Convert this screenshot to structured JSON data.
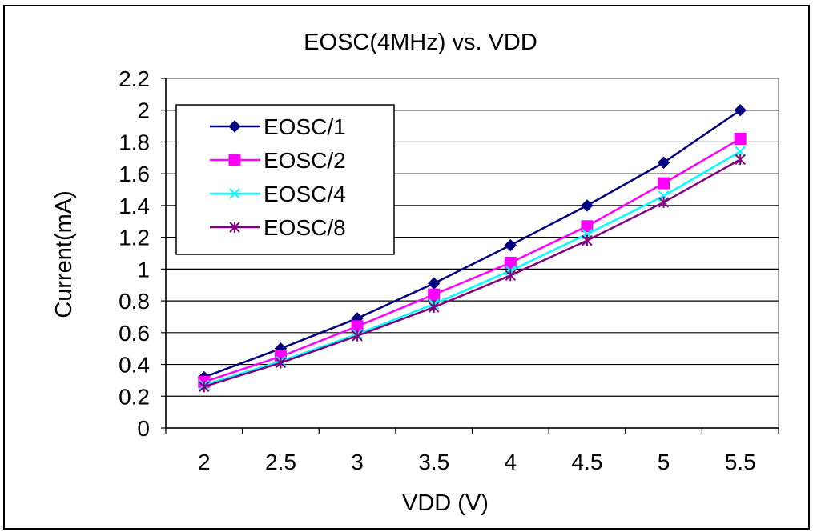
{
  "chart_data": {
    "type": "line",
    "title": "EOSC(4MHz) vs. VDD",
    "xlabel": "VDD (V)",
    "ylabel": "Current(mA)",
    "categories": [
      "2",
      "2.5",
      "3",
      "3.5",
      "4",
      "4.5",
      "5",
      "5.5"
    ],
    "ylim": [
      0,
      2.2
    ],
    "yticks": [
      "0",
      "0.2",
      "0.4",
      "0.6",
      "0.8",
      "1",
      "1.2",
      "1.4",
      "1.6",
      "1.8",
      "2",
      "2.2"
    ],
    "grid": true,
    "legend_position": "top-left",
    "series": [
      {
        "name": "EOSC/1",
        "color": "#000080",
        "marker": "diamond",
        "values": [
          0.32,
          0.5,
          0.69,
          0.91,
          1.15,
          1.4,
          1.67,
          2.0
        ]
      },
      {
        "name": "EOSC/2",
        "color": "#ff00ff",
        "marker": "square",
        "values": [
          0.29,
          0.45,
          0.64,
          0.84,
          1.04,
          1.27,
          1.54,
          1.82
        ]
      },
      {
        "name": "EOSC/4",
        "color": "#00ffff",
        "marker": "x",
        "values": [
          0.27,
          0.42,
          0.59,
          0.78,
          0.99,
          1.22,
          1.46,
          1.74
        ]
      },
      {
        "name": "EOSC/8",
        "color": "#800080",
        "marker": "asterisk",
        "values": [
          0.26,
          0.41,
          0.58,
          0.76,
          0.96,
          1.18,
          1.42,
          1.69
        ]
      }
    ]
  }
}
